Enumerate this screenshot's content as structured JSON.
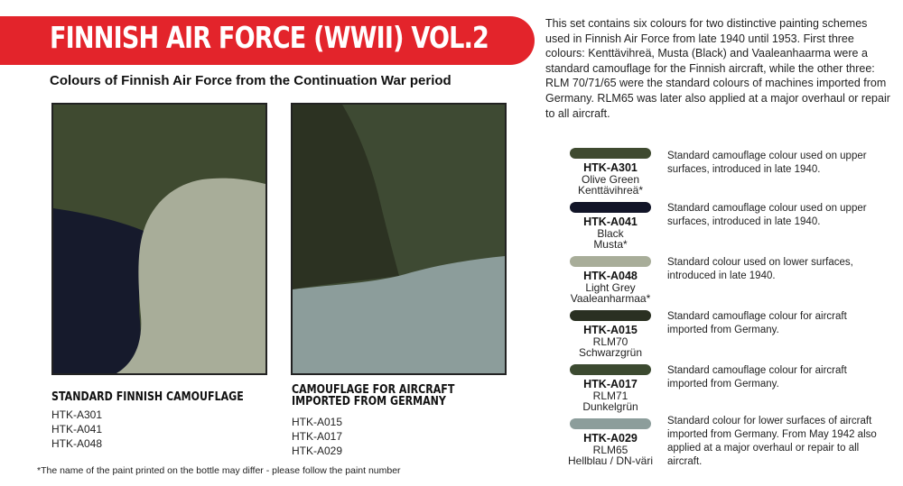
{
  "header": {
    "title": "FINNISH AIR FORCE (WWII) VOL.2",
    "subtitle": "Colours of  Finnish Air Force from the Continuation War period"
  },
  "intro": "This set contains six colours for two distinctive painting schemes used in Finnish Air Force from late 1940 until 1953. First three colours: Kenttävihreä, Musta (Black) and Vaaleanhaarma were a standard camouflage for the Finnish aircraft, while the other three: RLM 70/71/65 were the standard colours of machines imported from Germany. RLM65 was later also applied at a major overhaul or repair to all aircraft.",
  "schemes": [
    {
      "title": "STANDARD FINNISH CAMOUFLAGE",
      "codes": [
        "HTK-A301",
        "HTK-A041",
        "HTK-A048"
      ],
      "colors": {
        "olive": "#3f4a30",
        "black": "#161a2c",
        "grey": "#a8ad99"
      }
    },
    {
      "title": "CAMOUFLAGE FOR AIRCRAFT IMPORTED FROM GERMANY",
      "codes": [
        "HTK-A015",
        "HTK-A017",
        "HTK-A029"
      ],
      "colors": {
        "schwarzgruen": "#2c3222",
        "dunkelgruen": "#3e4a33",
        "hellblau": "#8c9d9b"
      }
    }
  ],
  "paints": [
    {
      "code": "HTK-A301",
      "name": "Olive Green",
      "alt": "Kenttävihreä*",
      "color": "#3f4a30",
      "description": "Standard camouflage colour used on upper surfaces, introduced in late 1940."
    },
    {
      "code": "HTK-A041",
      "name": "Black",
      "alt": "Musta*",
      "color": "#121528",
      "description": "Standard camouflage colour used on upper surfaces, introduced in late 1940."
    },
    {
      "code": "HTK-A048",
      "name": "Light Grey",
      "alt": "Vaaleanharmaa*",
      "color": "#a8ad99",
      "description": "Standard colour used on lower surfaces, introduced in late 1940."
    },
    {
      "code": "HTK-A015",
      "name": "RLM70",
      "alt": "Schwarzgrün",
      "color": "#2a3022",
      "description": "Standard camouflage colour for aircraft imported from Germany."
    },
    {
      "code": "HTK-A017",
      "name": "RLM71",
      "alt": "Dunkelgrün",
      "color": "#3c4a30",
      "description": "Standard camouflage colour for aircraft imported from Germany."
    },
    {
      "code": "HTK-A029",
      "name": "RLM65",
      "alt": "Hellblau / DN-väri",
      "color": "#8c9d9b",
      "description": "Standard colour for lower surfaces of aircraft imported from Germany. From May 1942 also applied at a major overhaul or repair to all aircraft."
    }
  ],
  "footnote": "*The name of the paint printed on the bottle may differ - please follow the paint number"
}
